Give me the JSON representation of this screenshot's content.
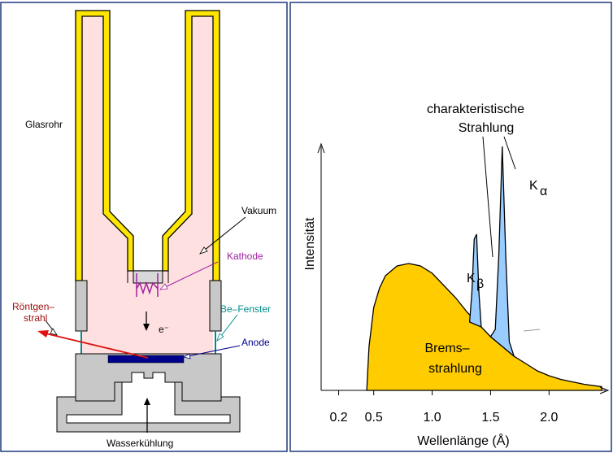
{
  "tube": {
    "labels": {
      "glasrohr": "Glasrohr",
      "vakuum": "Vakuum",
      "kathode": "Kathode",
      "electron": "e⁻",
      "roentgen_line1": "Röntgen–",
      "roentgen_line2": "strahl",
      "be_fenster": "Be–Fenster",
      "anode": "Anode",
      "wasserkuehlung": "Wasserkühlung"
    },
    "colors": {
      "glass": "#ffe600",
      "vacuum": "#ffe0e0",
      "metal": "#c8c8c8",
      "kathode": "#a020a0",
      "anode": "#00008b",
      "window": "#008b8b",
      "xray": "#e01010"
    }
  },
  "spectrum": {
    "labels": {
      "char_line1": "charakteristische",
      "char_line2": "Strahlung",
      "k_alpha": "K",
      "k_alpha_sub": "α",
      "k_beta": "K",
      "k_beta_sub": "β",
      "brems_line1": "Brems–",
      "brems_line2": "strahlung"
    },
    "colors": {
      "brems": "#ffcc00",
      "peaks": "#99ccff"
    }
  },
  "chart_data": {
    "type": "area",
    "xlabel": "Wellenlänge (Å)",
    "ylabel": "Intensität",
    "x_ticks": [
      "0.2",
      "0.5",
      "1.0",
      "1.5",
      "2.0"
    ],
    "x_tick_values": [
      0.2,
      0.5,
      1.0,
      1.5,
      2.0
    ],
    "xlim": [
      0.05,
      2.45
    ],
    "ylim": [
      0,
      1.0
    ],
    "series": [
      {
        "name": "Bremsstrahlung",
        "x": [
          0.44,
          0.46,
          0.5,
          0.55,
          0.6,
          0.7,
          0.8,
          0.9,
          1.0,
          1.1,
          1.2,
          1.3,
          1.4,
          1.5,
          1.6,
          1.7,
          1.8,
          1.9,
          2.0,
          2.1,
          2.2,
          2.3,
          2.45
        ],
        "y": [
          0.0,
          0.18,
          0.34,
          0.42,
          0.47,
          0.51,
          0.52,
          0.51,
          0.48,
          0.43,
          0.38,
          0.32,
          0.27,
          0.22,
          0.18,
          0.14,
          0.11,
          0.08,
          0.06,
          0.045,
          0.035,
          0.025,
          0.015
        ]
      },
      {
        "name": "K-beta",
        "x": [
          1.32,
          1.34,
          1.36,
          1.38,
          1.4,
          1.42
        ],
        "y": [
          0.28,
          0.4,
          0.62,
          0.64,
          0.4,
          0.26
        ]
      },
      {
        "name": "K-alpha",
        "x": [
          1.5,
          1.54,
          1.57,
          1.6,
          1.63,
          1.66,
          1.7
        ],
        "y": [
          0.22,
          0.25,
          0.55,
          1.0,
          0.55,
          0.2,
          0.14
        ]
      }
    ]
  }
}
